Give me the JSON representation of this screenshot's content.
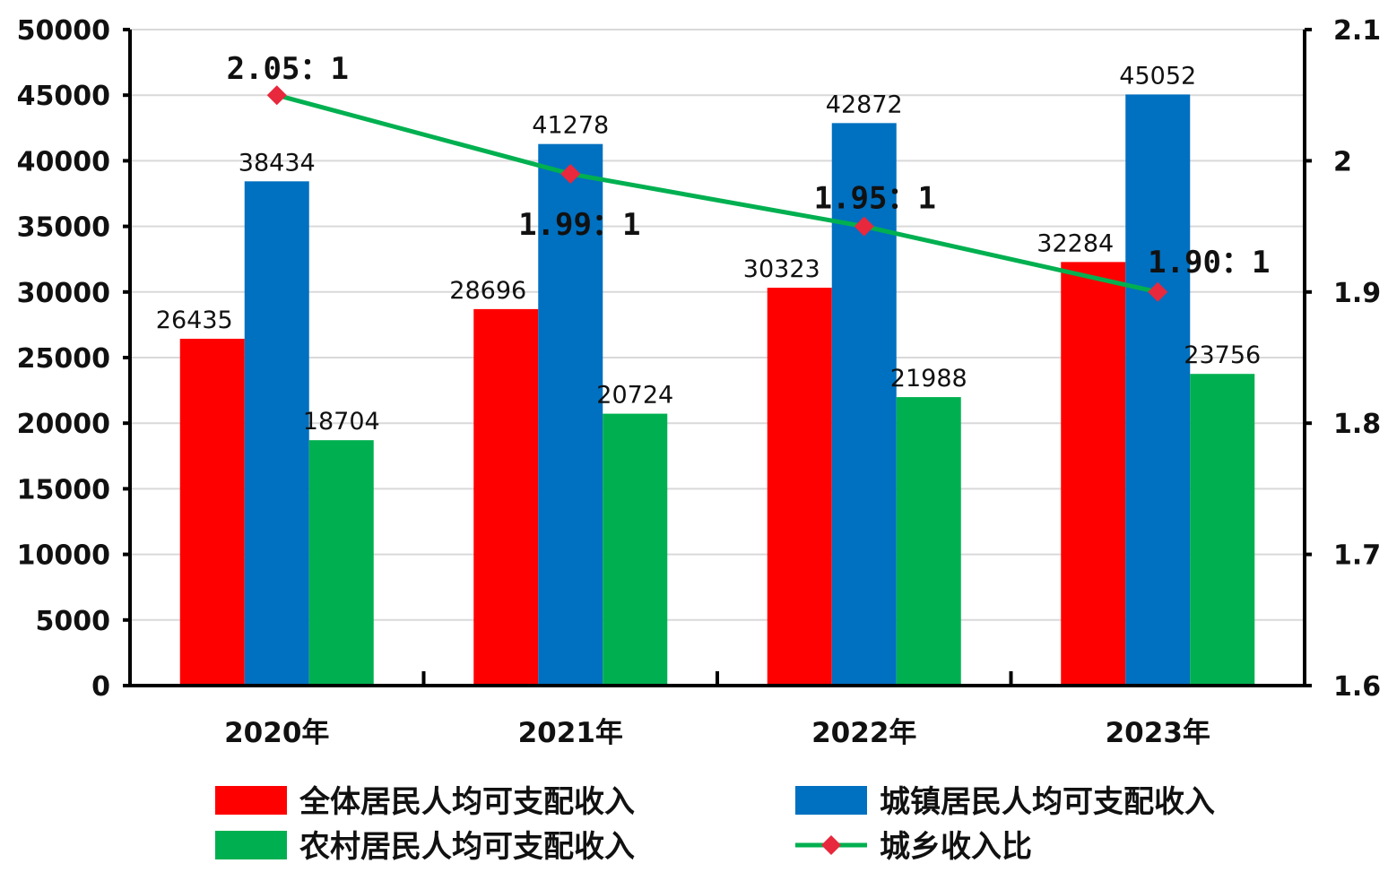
{
  "chart_data": {
    "type": "bar",
    "categories": [
      "2020年",
      "2021年",
      "2022年",
      "2023年"
    ],
    "series": [
      {
        "name": "全体居民人均可支配收入",
        "values": [
          26435,
          28696,
          30323,
          32284
        ],
        "color": "#ff0000"
      },
      {
        "name": "城镇居民人均可支配收入",
        "values": [
          38434,
          41278,
          42872,
          45052
        ],
        "color": "#0070c0"
      },
      {
        "name": "农村居民人均可支配收入",
        "values": [
          18704,
          20724,
          21988,
          23756
        ],
        "color": "#00b050"
      }
    ],
    "line_series": {
      "name": "城乡收入比",
      "type": "line",
      "axis": "right",
      "values": [
        2.05,
        1.99,
        1.95,
        1.9
      ],
      "labels": [
        "2.05：1",
        "1.99：1",
        "1.95：1",
        "1.90：1"
      ],
      "line_color": "#00b050",
      "marker_color": "#e8283c"
    },
    "y_left": {
      "min": 0,
      "max": 50000,
      "step": 5000,
      "ticks": [
        "0",
        "5000",
        "10000",
        "15000",
        "20000",
        "25000",
        "30000",
        "35000",
        "40000",
        "45000",
        "50000"
      ]
    },
    "y_right": {
      "min": 1.6,
      "max": 2.1,
      "step": 0.1,
      "ticks": [
        "1.6",
        "1.7",
        "1.8",
        "1.9",
        "2",
        "2.1"
      ]
    },
    "grid": true,
    "legend_position": "bottom",
    "title": "",
    "xlabel": "",
    "ylabel": ""
  }
}
